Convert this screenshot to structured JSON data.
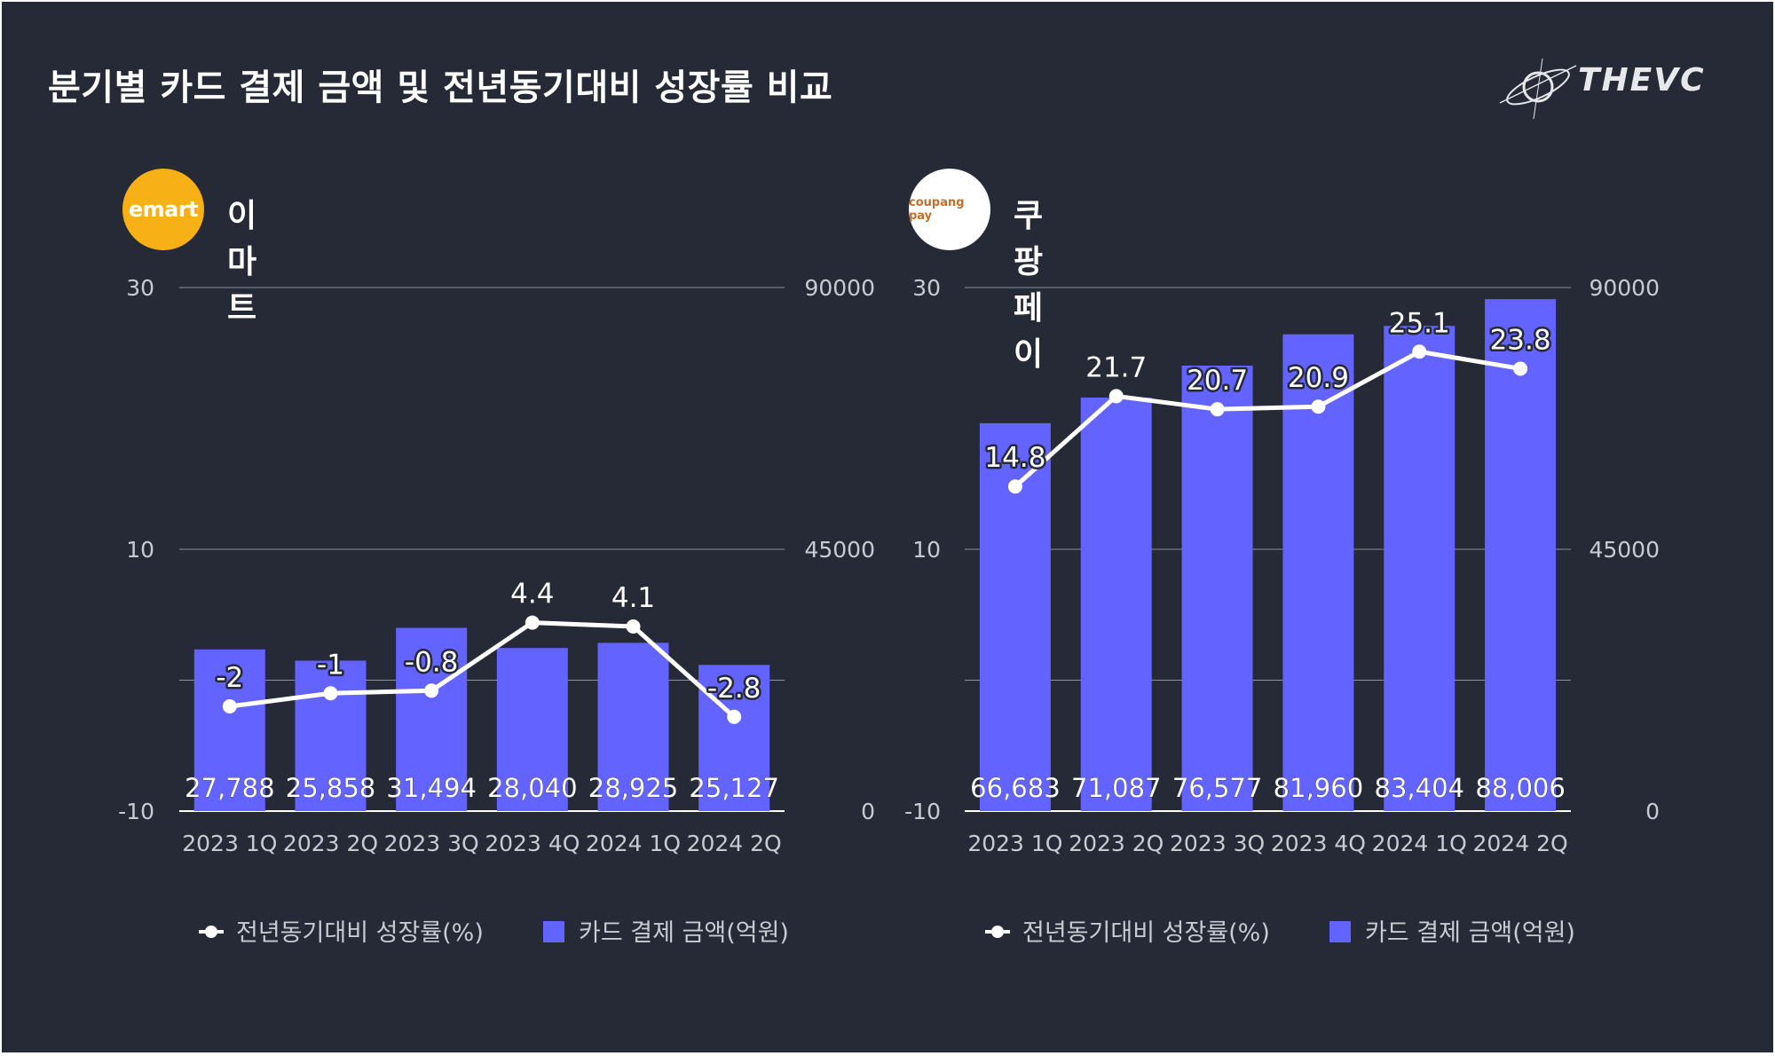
{
  "title": "분기별 카드 결제 금액 및 전년동기대비 성장률 비교",
  "brand": "THEVC",
  "colors": {
    "background": "#252a36",
    "bar": "#6363ff",
    "line": "#ffffff",
    "grid": "#9aa0aa",
    "text": "#c8cbd2"
  },
  "chart_data": [
    {
      "type": "bar",
      "name": "이마트",
      "logo_text": "emart",
      "logo_color": "#f8b017",
      "categories": [
        "2023 1Q",
        "2023 2Q",
        "2023 3Q",
        "2023 4Q",
        "2024 1Q",
        "2024 2Q"
      ],
      "left_axis": {
        "min": -10,
        "max": 30,
        "ticks": [
          "30",
          "10",
          "-10"
        ]
      },
      "right_axis": {
        "min": 0,
        "max": 90000,
        "ticks": [
          "90000",
          "45000",
          "0"
        ]
      },
      "series": [
        {
          "name": "카드 결제 금액(억원)",
          "kind": "bar",
          "axis": "right",
          "values": [
            27788,
            25858,
            31494,
            28040,
            28925,
            25127
          ],
          "labels": [
            "27,788",
            "25,858",
            "31,494",
            "28,040",
            "28,925",
            "25,127"
          ]
        },
        {
          "name": "전년동기대비 성장률(%)",
          "kind": "line",
          "axis": "left",
          "values": [
            -2,
            -1,
            -0.8,
            4.4,
            4.1,
            -2.8
          ],
          "labels": [
            "-2",
            "-1",
            "-0.8",
            "4.4",
            "4.1",
            "-2.8"
          ]
        }
      ]
    },
    {
      "type": "bar",
      "name": "쿠팡페이",
      "logo_text": "coupang pay",
      "logo_color": "#ffffff",
      "categories": [
        "2023 1Q",
        "2023 2Q",
        "2023 3Q",
        "2023 4Q",
        "2024 1Q",
        "2024 2Q"
      ],
      "left_axis": {
        "min": -10,
        "max": 30,
        "ticks": [
          "30",
          "10",
          "-10"
        ]
      },
      "right_axis": {
        "min": 0,
        "max": 90000,
        "ticks": [
          "90000",
          "45000",
          "0"
        ]
      },
      "series": [
        {
          "name": "카드 결제 금액(억원)",
          "kind": "bar",
          "axis": "right",
          "values": [
            66683,
            71087,
            76577,
            81960,
            83404,
            88006
          ],
          "labels": [
            "66,683",
            "71,087",
            "76,577",
            "81,960",
            "83,404",
            "88,006"
          ]
        },
        {
          "name": "전년동기대비 성장률(%)",
          "kind": "line",
          "axis": "left",
          "values": [
            14.8,
            21.7,
            20.7,
            20.9,
            25.1,
            23.8
          ],
          "labels": [
            "14.8",
            "21.7",
            "20.7",
            "20.9",
            "25.1",
            "23.8"
          ]
        }
      ]
    }
  ],
  "legend": {
    "line_label": "전년동기대비 성장률(%)",
    "bar_label": "카드 결제 금액(억원)"
  }
}
